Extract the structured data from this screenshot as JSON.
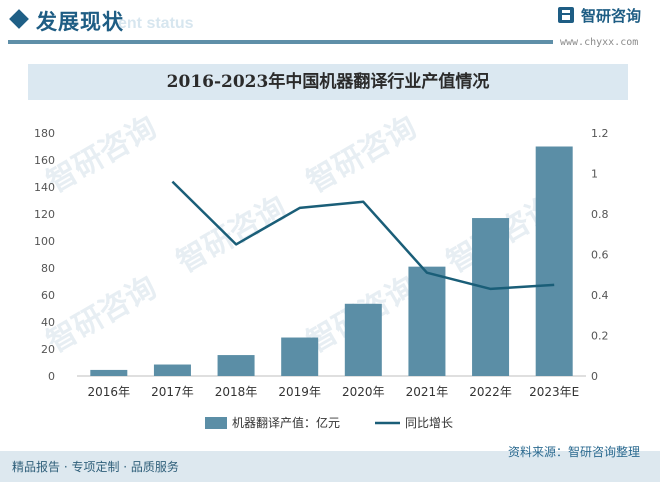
{
  "header": {
    "title": "发展现状",
    "subtitle_en": "ent status",
    "logo_text": "智研咨询",
    "logo_url": "www.chyxx.com"
  },
  "watermark": "智研咨询",
  "chart_data": {
    "type": "bar+line",
    "title": "2016-2023年中国机器翻译行业产值情况",
    "categories": [
      "2016年",
      "2017年",
      "2018年",
      "2019年",
      "2020年",
      "2021年",
      "2022年",
      "2023年E"
    ],
    "series": [
      {
        "name": "机器翻译产值：亿元",
        "type": "bar",
        "axis": "left",
        "values": [
          4.5,
          8.5,
          15.5,
          28.5,
          53.5,
          81,
          117,
          170
        ]
      },
      {
        "name": "同比增长",
        "type": "line",
        "axis": "right",
        "values": [
          null,
          0.96,
          0.65,
          0.83,
          0.86,
          0.51,
          0.43,
          0.45
        ]
      }
    ],
    "yleft": {
      "min": 0,
      "max": 180,
      "ticks": [
        "0",
        "20",
        "40",
        "60",
        "80",
        "100",
        "120",
        "140",
        "160",
        "180"
      ]
    },
    "yright": {
      "min": 0,
      "max": 1.2,
      "ticks": [
        "0",
        "0.2",
        "0.4",
        "0.6",
        "0.8",
        "1",
        "1.2"
      ]
    },
    "colors": {
      "bar": "#5b8ea6",
      "line": "#1a5e78"
    },
    "legend": {
      "placement": "bottom-center"
    }
  },
  "footer": {
    "left": "精品报告 · 专项定制 · 品质服务",
    "source": "资料来源：智研咨询整理"
  }
}
